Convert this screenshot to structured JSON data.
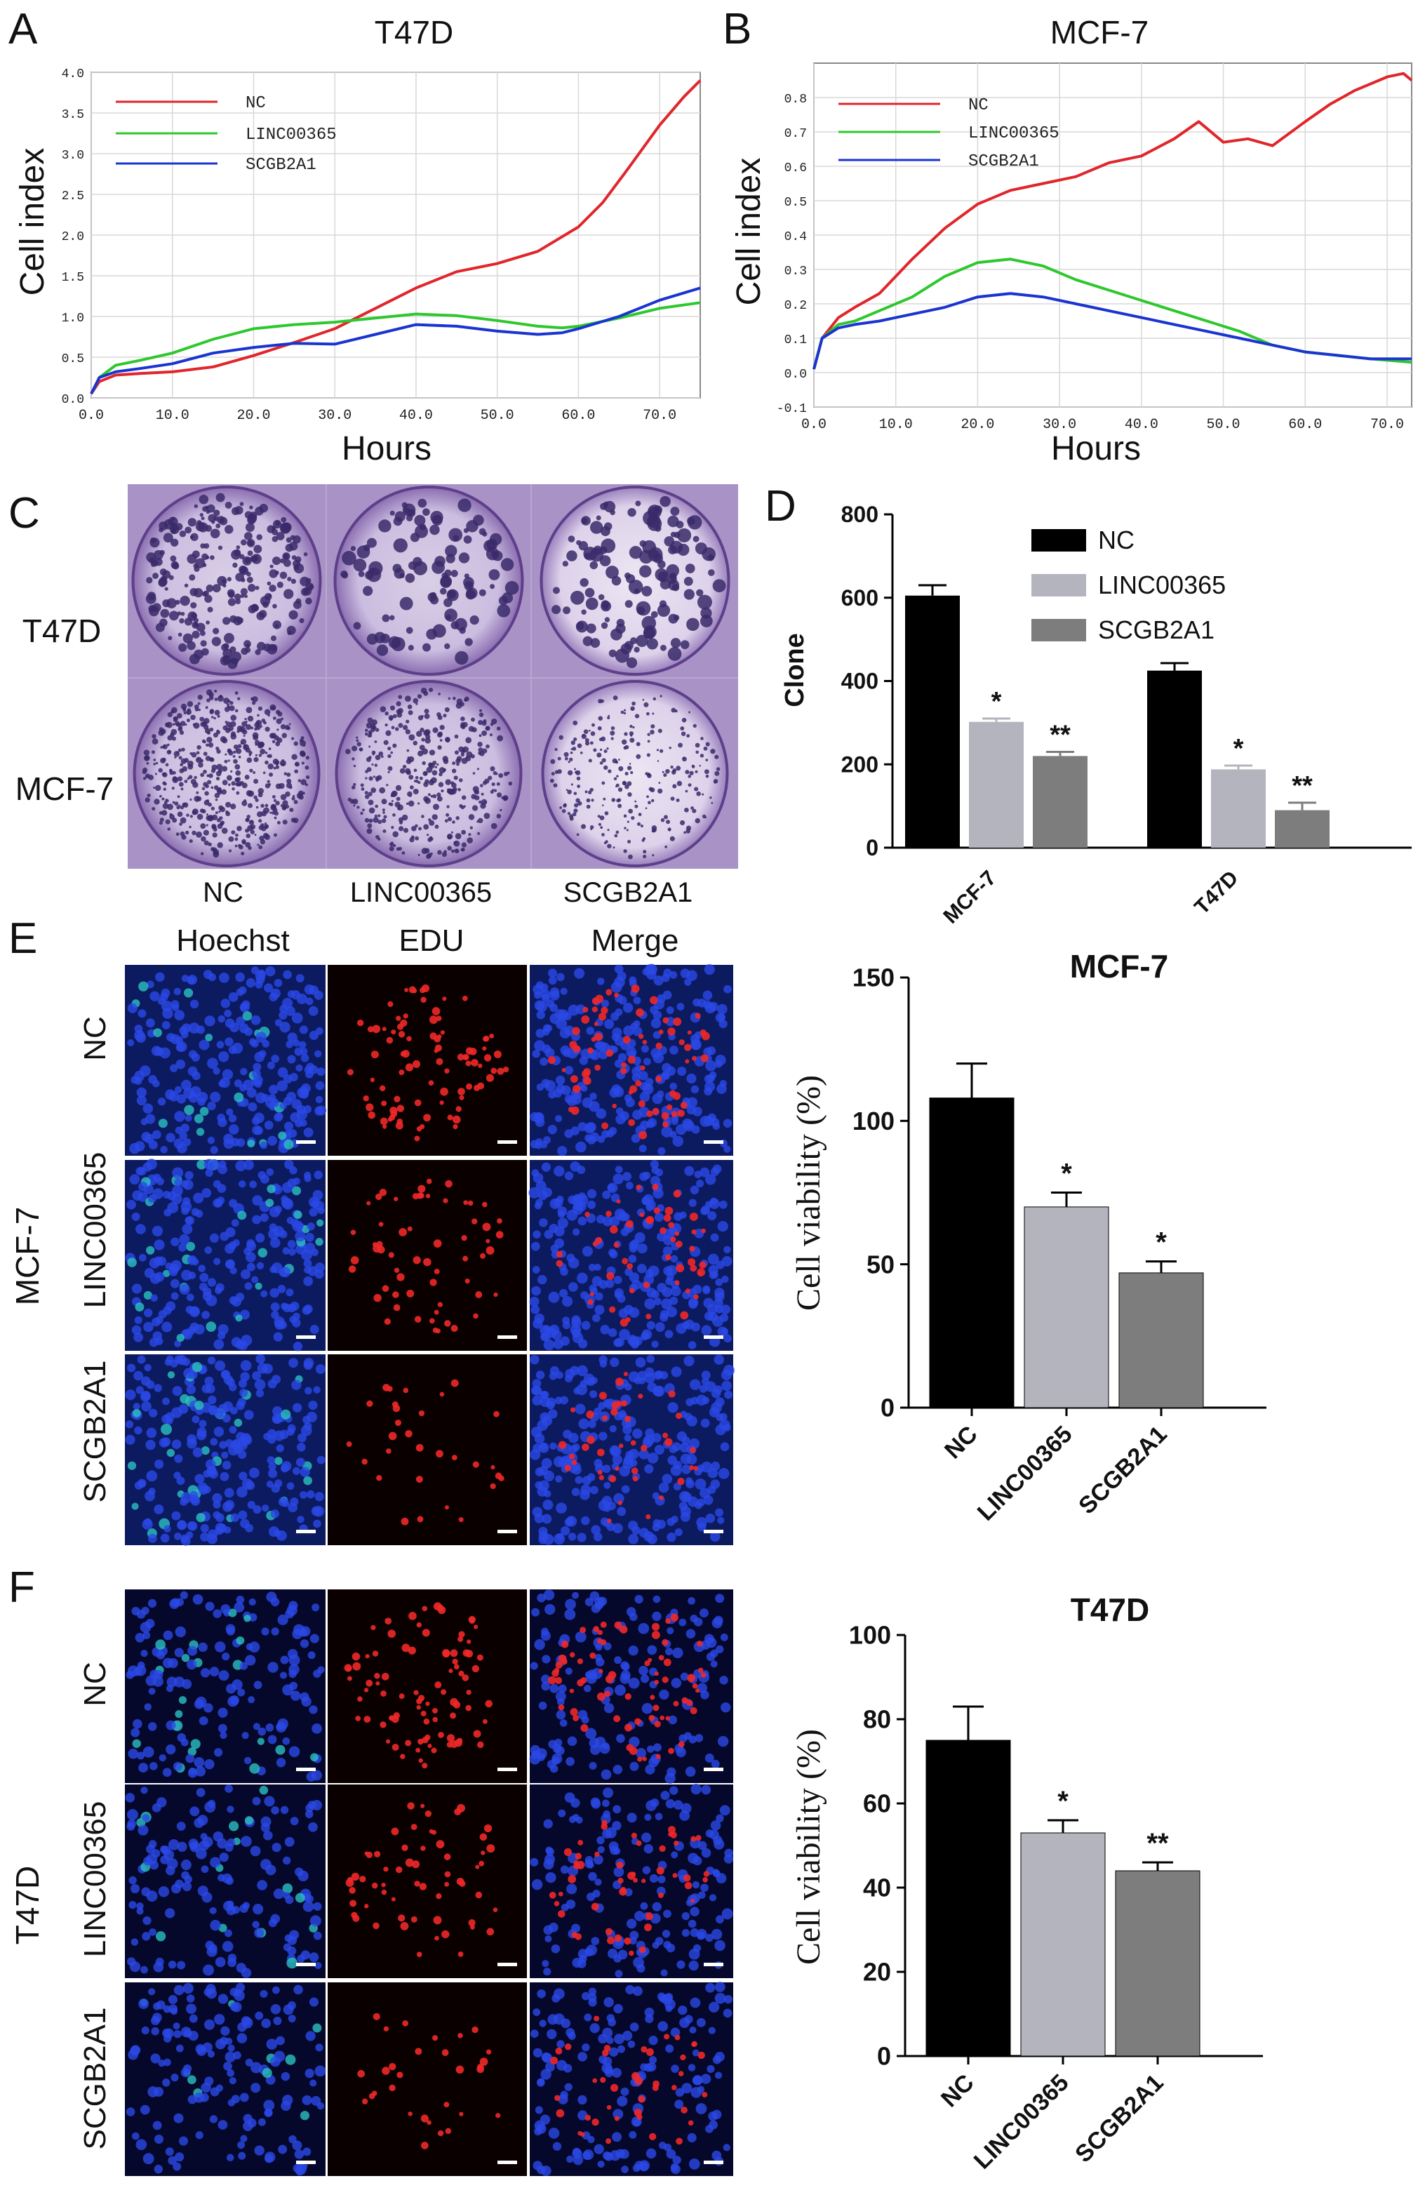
{
  "panels": {
    "A": "A",
    "B": "B",
    "C": "C",
    "D": "D",
    "E": "E",
    "F": "F"
  },
  "plate_images": {
    "row_labels": [
      "T47D",
      "MCF-7"
    ],
    "col_labels": [
      "NC",
      "LINC00365",
      "SCGB2A1"
    ]
  },
  "edu_images": {
    "col_labels": [
      "Hoechst",
      "EDU",
      "Merge"
    ],
    "E": {
      "group": "MCF-7",
      "rows": [
        "NC",
        "LINC00365",
        "SCGB2A1"
      ]
    },
    "F": {
      "group": "T47D",
      "rows": [
        "NC",
        "LINC00365",
        "SCGB2A1"
      ]
    }
  },
  "colors": {
    "nc_line": "#e0262b",
    "linc_line": "#2ec82e",
    "scgb_line": "#1a34d0",
    "nc_bar": "#000000",
    "linc_bar": "#b4b4be",
    "scgb_bar": "#7d7d7d",
    "plate_purple": "#6e4e96",
    "hoechst_blue": "#1a3ad2",
    "edu_red": "#e61e1e"
  },
  "chart_data": [
    {
      "id": "A",
      "type": "line",
      "title": "T47D",
      "xlabel": "Hours",
      "ylabel": "Cell index",
      "xlim": [
        0,
        75
      ],
      "ylim": [
        0,
        4.0
      ],
      "xticks": [
        "0.0",
        "10.0",
        "20.0",
        "30.0",
        "40.0",
        "50.0",
        "60.0",
        "70.0"
      ],
      "xtick_values": [
        0,
        10,
        20,
        30,
        40,
        50,
        60,
        70
      ],
      "yticks": [
        "0.0",
        "0.5",
        "1.0",
        "1.5",
        "2.0",
        "2.5",
        "3.0",
        "3.5",
        "4.0"
      ],
      "ytick_values": [
        0,
        0.5,
        1.0,
        1.5,
        2.0,
        2.5,
        3.0,
        3.5,
        4.0
      ],
      "legend_position": "top-left",
      "grid": true,
      "series": [
        {
          "name": "NC",
          "color": "#e0262b",
          "x": [
            0,
            1,
            3,
            6,
            10,
            15,
            20,
            25,
            30,
            35,
            40,
            45,
            50,
            55,
            60,
            63,
            66,
            70,
            73,
            75
          ],
          "y": [
            0.05,
            0.2,
            0.28,
            0.3,
            0.32,
            0.38,
            0.52,
            0.68,
            0.85,
            1.1,
            1.35,
            1.55,
            1.65,
            1.8,
            2.1,
            2.4,
            2.8,
            3.35,
            3.7,
            3.9
          ]
        },
        {
          "name": "LINC00365",
          "color": "#2ec82e",
          "x": [
            0,
            1,
            3,
            6,
            10,
            15,
            20,
            25,
            30,
            35,
            40,
            45,
            50,
            55,
            58,
            60,
            65,
            70,
            75
          ],
          "y": [
            0.05,
            0.25,
            0.4,
            0.46,
            0.55,
            0.72,
            0.85,
            0.9,
            0.93,
            0.98,
            1.03,
            1.01,
            0.95,
            0.88,
            0.86,
            0.88,
            0.98,
            1.1,
            1.17
          ]
        },
        {
          "name": "SCGB2A1",
          "color": "#1a34d0",
          "x": [
            0,
            1,
            3,
            6,
            10,
            15,
            20,
            25,
            30,
            35,
            40,
            45,
            50,
            55,
            58,
            60,
            65,
            70,
            75
          ],
          "y": [
            0.05,
            0.25,
            0.32,
            0.36,
            0.42,
            0.55,
            0.62,
            0.67,
            0.66,
            0.78,
            0.9,
            0.88,
            0.82,
            0.78,
            0.8,
            0.85,
            1.0,
            1.2,
            1.35
          ]
        }
      ]
    },
    {
      "id": "B",
      "type": "line",
      "title": "MCF-7",
      "xlabel": "Hours",
      "ylabel": "Cell index",
      "xlim": [
        0,
        73
      ],
      "ylim": [
        -0.1,
        0.9
      ],
      "xticks": [
        "0.0",
        "10.0",
        "20.0",
        "30.0",
        "40.0",
        "50.0",
        "60.0",
        "70.0"
      ],
      "xtick_values": [
        0,
        10,
        20,
        30,
        40,
        50,
        60,
        70
      ],
      "yticks": [
        "-0.1",
        "0.0",
        "0.1",
        "0.2",
        "0.3",
        "0.4",
        "0.5",
        "0.6",
        "0.7",
        "0.8"
      ],
      "ytick_values": [
        -0.1,
        0,
        0.1,
        0.2,
        0.3,
        0.4,
        0.5,
        0.6,
        0.7,
        0.8
      ],
      "legend_position": "top-left",
      "grid": true,
      "series": [
        {
          "name": "NC",
          "color": "#e0262b",
          "x": [
            0,
            1,
            3,
            5,
            8,
            12,
            16,
            20,
            24,
            28,
            32,
            36,
            40,
            44,
            47,
            50,
            53,
            56,
            60,
            63,
            66,
            70,
            72,
            73
          ],
          "y": [
            0.01,
            0.1,
            0.16,
            0.19,
            0.23,
            0.33,
            0.42,
            0.49,
            0.53,
            0.55,
            0.57,
            0.61,
            0.63,
            0.68,
            0.73,
            0.67,
            0.68,
            0.66,
            0.73,
            0.78,
            0.82,
            0.86,
            0.87,
            0.85
          ]
        },
        {
          "name": "LINC00365",
          "color": "#2ec82e",
          "x": [
            0,
            1,
            3,
            5,
            8,
            12,
            16,
            20,
            24,
            28,
            32,
            36,
            40,
            44,
            48,
            52,
            56,
            60,
            64,
            68,
            73
          ],
          "y": [
            0.01,
            0.1,
            0.14,
            0.15,
            0.18,
            0.22,
            0.28,
            0.32,
            0.33,
            0.31,
            0.27,
            0.24,
            0.21,
            0.18,
            0.15,
            0.12,
            0.08,
            0.06,
            0.05,
            0.04,
            0.03
          ]
        },
        {
          "name": "SCGB2A1",
          "color": "#1a34d0",
          "x": [
            0,
            1,
            3,
            5,
            8,
            12,
            16,
            20,
            24,
            28,
            32,
            36,
            40,
            44,
            48,
            52,
            56,
            60,
            64,
            68,
            73
          ],
          "y": [
            0.01,
            0.1,
            0.13,
            0.14,
            0.15,
            0.17,
            0.19,
            0.22,
            0.23,
            0.22,
            0.2,
            0.18,
            0.16,
            0.14,
            0.12,
            0.1,
            0.08,
            0.06,
            0.05,
            0.04,
            0.04
          ]
        }
      ]
    },
    {
      "id": "D",
      "type": "bar",
      "ylabel": "Clone",
      "ylim": [
        0,
        800
      ],
      "yticks": [
        "0",
        "200",
        "400",
        "600",
        "800"
      ],
      "ytick_values": [
        0,
        200,
        400,
        600,
        800
      ],
      "categories": [
        "MCF-7",
        "T47D"
      ],
      "legend_position": "top-center",
      "series": [
        {
          "name": "NC",
          "color": "#000000",
          "values": [
            605,
            425
          ],
          "errors": [
            25,
            18
          ],
          "annotations": [
            "",
            ""
          ]
        },
        {
          "name": "LINC00365",
          "color": "#b4b4be",
          "values": [
            302,
            188
          ],
          "errors": [
            8,
            9
          ],
          "annotations": [
            "*",
            "*"
          ]
        },
        {
          "name": "SCGB2A1",
          "color": "#7d7d7d",
          "values": [
            220,
            90
          ],
          "errors": [
            10,
            18
          ],
          "annotations": [
            "**",
            "**"
          ]
        }
      ]
    },
    {
      "id": "E-chart",
      "type": "bar",
      "title": "MCF-7",
      "ylabel": "Cell viability (%)",
      "ylim": [
        0,
        150
      ],
      "yticks": [
        "0",
        "50",
        "100",
        "150"
      ],
      "ytick_values": [
        0,
        50,
        100,
        150
      ],
      "categories": [
        "NC",
        "LINC00365",
        "SCGB2A1"
      ],
      "values": [
        108,
        70,
        47
      ],
      "errors": [
        12,
        5,
        4
      ],
      "annotations": [
        "",
        "*",
        "*"
      ],
      "colors": [
        "#000000",
        "#b4b4be",
        "#7d7d7d"
      ]
    },
    {
      "id": "F-chart",
      "type": "bar",
      "title": "T47D",
      "ylabel": "Cell viability (%)",
      "ylim": [
        0,
        100
      ],
      "yticks": [
        "0",
        "20",
        "40",
        "60",
        "80",
        "100"
      ],
      "ytick_values": [
        0,
        20,
        40,
        60,
        80,
        100
      ],
      "categories": [
        "NC",
        "LINC00365",
        "SCGB2A1"
      ],
      "values": [
        75,
        53,
        44
      ],
      "errors": [
        8,
        3,
        2
      ],
      "annotations": [
        "",
        "*",
        "**"
      ],
      "colors": [
        "#000000",
        "#b4b4be",
        "#7d7d7d"
      ]
    }
  ]
}
